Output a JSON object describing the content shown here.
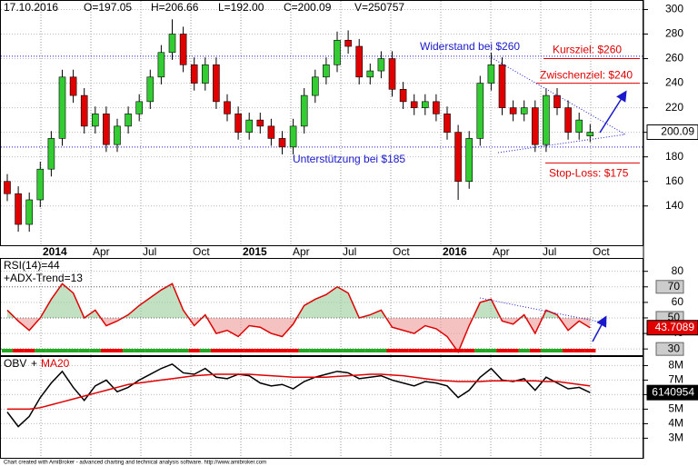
{
  "chart_data": [
    {
      "type": "candlestick",
      "header": [
        "17.10.2016",
        "O=197.05",
        "H=206.66",
        "L=192.00",
        "C=200.09",
        "V=250757"
      ],
      "xticks": [
        "2014",
        "Apr",
        "Jul",
        "Oct",
        "2015",
        "Apr",
        "Jul",
        "Oct",
        "2016",
        "Apr",
        "Jul",
        "Oct"
      ],
      "open": [
        160,
        150,
        125,
        145,
        170,
        195,
        245,
        230,
        205,
        215,
        190,
        205,
        215,
        225,
        245,
        265,
        280,
        255,
        240,
        255,
        225,
        215,
        200,
        210,
        205,
        195,
        188,
        205,
        230,
        245,
        255,
        275,
        270,
        245,
        250,
        260,
        235,
        225,
        220,
        225,
        215,
        200,
        160,
        195,
        240,
        255,
        220,
        215,
        220,
        190,
        230,
        220,
        200,
        197.05
      ],
      "high": [
        166,
        156,
        151,
        176,
        201,
        251,
        251,
        236,
        221,
        221,
        211,
        221,
        231,
        251,
        271,
        292,
        286,
        261,
        261,
        261,
        231,
        221,
        216,
        216,
        211,
        201,
        211,
        236,
        251,
        261,
        282,
        283,
        276,
        256,
        266,
        266,
        241,
        231,
        231,
        231,
        221,
        206,
        201,
        246,
        265,
        261,
        226,
        226,
        226,
        236,
        236,
        226,
        216,
        206.66
      ],
      "low": [
        144,
        119,
        119,
        139,
        164,
        189,
        224,
        199,
        199,
        184,
        184,
        199,
        209,
        219,
        239,
        259,
        249,
        234,
        234,
        219,
        209,
        194,
        194,
        199,
        189,
        182,
        182,
        199,
        224,
        239,
        249,
        264,
        239,
        239,
        244,
        229,
        219,
        214,
        214,
        209,
        194,
        145,
        154,
        189,
        234,
        214,
        209,
        209,
        184,
        184,
        214,
        194,
        194,
        192
      ],
      "close": [
        150,
        125,
        145,
        170,
        195,
        245,
        230,
        205,
        215,
        190,
        205,
        215,
        225,
        245,
        265,
        280,
        255,
        240,
        255,
        225,
        215,
        200,
        210,
        205,
        195,
        188,
        205,
        230,
        245,
        255,
        275,
        270,
        245,
        250,
        260,
        235,
        225,
        220,
        225,
        215,
        200,
        160,
        195,
        240,
        255,
        220,
        215,
        220,
        190,
        230,
        220,
        200,
        210,
        200.09
      ],
      "colors": {
        "up": "#33cc33",
        "down": "#e00000"
      },
      "ylim": [
        108,
        307
      ],
      "yticks": [
        140,
        160,
        180,
        200,
        220,
        240,
        260,
        280,
        300
      ],
      "levels": [
        {
          "value": 262,
          "label": "Widerstand bei $260",
          "color": "#1a1acc"
        },
        {
          "value": 188,
          "label": "Unterstützung bei  $185",
          "color": "#1a1acc"
        }
      ],
      "targets": [
        {
          "value": 260,
          "label": "Kursziel: $260",
          "color": "#e00000"
        },
        {
          "value": 240,
          "label": "Zwischenziel: $240",
          "color": "#e00000"
        },
        {
          "value": 175,
          "label": "Stop-Loss: $175",
          "color": "#e00000"
        }
      ]
    },
    {
      "type": "line",
      "title": "RSI(14)=44",
      "subtitle": "+ADX-Trend=13",
      "values": [
        55,
        48,
        42,
        50,
        62,
        72,
        66,
        50,
        55,
        45,
        48,
        52,
        58,
        63,
        68,
        72,
        55,
        45,
        52,
        40,
        42,
        38,
        45,
        44,
        40,
        38,
        46,
        58,
        62,
        65,
        70,
        66,
        50,
        52,
        55,
        44,
        42,
        40,
        45,
        43,
        38,
        28,
        45,
        60,
        62,
        48,
        46,
        52,
        40,
        55,
        52,
        42,
        48,
        43.7089
      ],
      "color": "#e00000",
      "ylim": [
        26,
        88
      ],
      "yticks": [
        30,
        40,
        50,
        60,
        70,
        80
      ],
      "levels": [
        30,
        50,
        70
      ]
    },
    {
      "type": "line",
      "legend_separator": "+",
      "series": [
        {
          "name": "OBV",
          "color": "#000000",
          "values": [
            4800000,
            3800000,
            4500000,
            5800000,
            6800000,
            7600000,
            6500000,
            5600000,
            6600000,
            7000000,
            6200000,
            6500000,
            7000000,
            7400000,
            7800000,
            8100000,
            7500000,
            7400000,
            7800000,
            7200000,
            7100000,
            7400000,
            7300000,
            6800000,
            6600000,
            6700000,
            6400000,
            6900000,
            7200000,
            7400000,
            7600000,
            7500000,
            7100000,
            7200000,
            7300000,
            7000000,
            6800000,
            6600000,
            6900000,
            6800000,
            6600000,
            5800000,
            6300000,
            7200000,
            7800000,
            7000000,
            6900000,
            7100000,
            6300000,
            7200000,
            6800000,
            6400000,
            6500000,
            6140954
          ]
        },
        {
          "name": "MA20",
          "color": "#e00000",
          "values": [
            5000000,
            5000000,
            5000000,
            5100000,
            5300000,
            5500000,
            5700000,
            5900000,
            6100000,
            6300000,
            6500000,
            6700000,
            6800000,
            6900000,
            7000000,
            7100000,
            7200000,
            7300000,
            7350000,
            7400000,
            7400000,
            7400000,
            7400000,
            7350000,
            7300000,
            7250000,
            7200000,
            7200000,
            7200000,
            7200000,
            7250000,
            7300000,
            7350000,
            7400000,
            7400000,
            7350000,
            7300000,
            7200000,
            7100000,
            7000000,
            6950000,
            6900000,
            6900000,
            6900000,
            6950000,
            6950000,
            6950000,
            6950000,
            6950000,
            6900000,
            6900000,
            6800000,
            6700000,
            6600000
          ]
        }
      ],
      "ylim": [
        1650000,
        8590000
      ],
      "yticks": [
        {
          "value": 3000000,
          "label": "3M"
        },
        {
          "value": 4000000,
          "label": "4M"
        },
        {
          "value": 5000000,
          "label": "5M"
        },
        {
          "value": 6000000,
          "label": "6M"
        },
        {
          "value": 7000000,
          "label": "7M"
        },
        {
          "value": 8000000,
          "label": "8M"
        }
      ]
    }
  ],
  "footer": "Chart created with AmiBroker - advanced charting and technical analysis software. http://www.amibroker.com"
}
